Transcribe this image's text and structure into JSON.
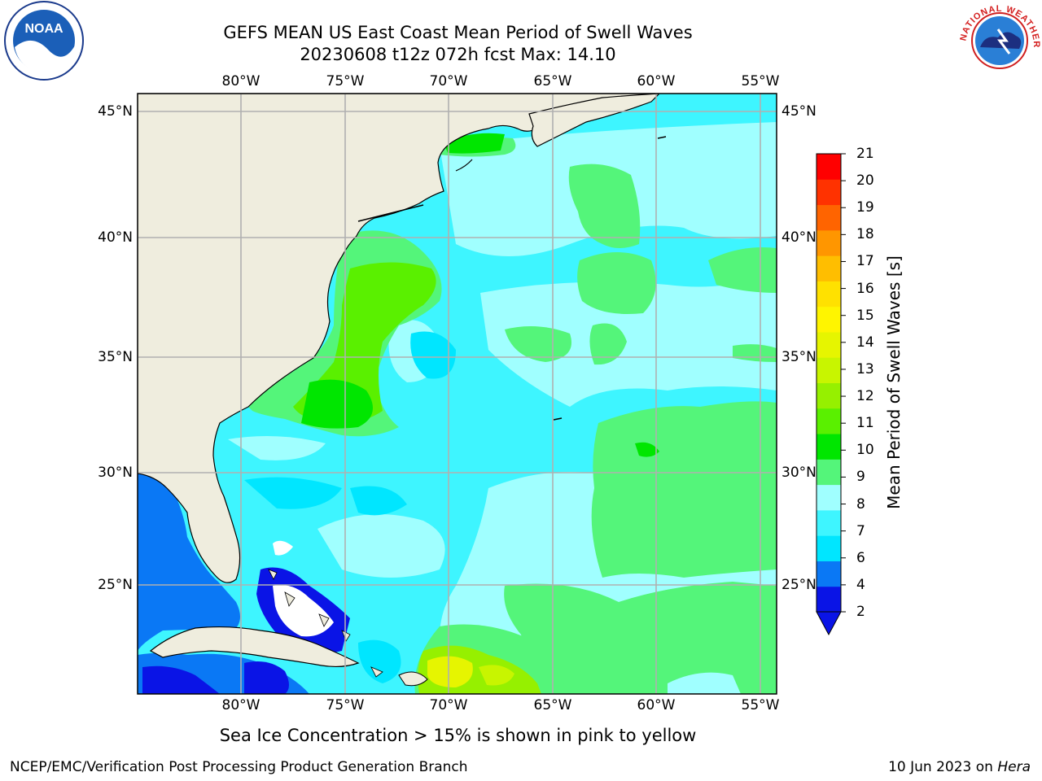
{
  "title": {
    "line1": "GEFS MEAN US East Coast Mean Period of Swell Waves",
    "line2": "20230608 t12z 072h fcst   Max: 14.10"
  },
  "map": {
    "lon_labels": [
      "80°W",
      "75°W",
      "70°W",
      "65°W",
      "60°W",
      "55°W"
    ],
    "lat_labels": [
      "45°N",
      "40°N",
      "35°N",
      "30°N",
      "25°N"
    ],
    "land_color": "#efedde",
    "grid_color": "#b0b0b0"
  },
  "colorbar": {
    "label": "Mean Period of Swell Waves [s]",
    "ticks": [
      "2",
      "4",
      "6",
      "7",
      "8",
      "9",
      "10",
      "11",
      "12",
      "13",
      "14",
      "15",
      "16",
      "17",
      "18",
      "19",
      "20",
      "21"
    ],
    "colors": [
      "#0a14e6",
      "#0a78f5",
      "#00e6ff",
      "#3ef5ff",
      "#a0ffff",
      "#54f57a",
      "#00e600",
      "#5af000",
      "#96f000",
      "#c8f500",
      "#e6f500",
      "#fff500",
      "#ffe100",
      "#ffbe00",
      "#ff9600",
      "#ff6400",
      "#ff3200",
      "#ff0000"
    ],
    "under_color": "#0a14e6"
  },
  "footer": {
    "note": "Sea Ice Concentration > 15% is shown in pink to yellow",
    "left": "NCEP/EMC/Verification Post Processing Product Generation Branch",
    "right_date": "10 Jun 2023 on ",
    "right_host": "Hera"
  },
  "logos": {
    "noaa_text": "NOAA",
    "nws_text": "NATIONAL WEATHER SERVICE"
  }
}
